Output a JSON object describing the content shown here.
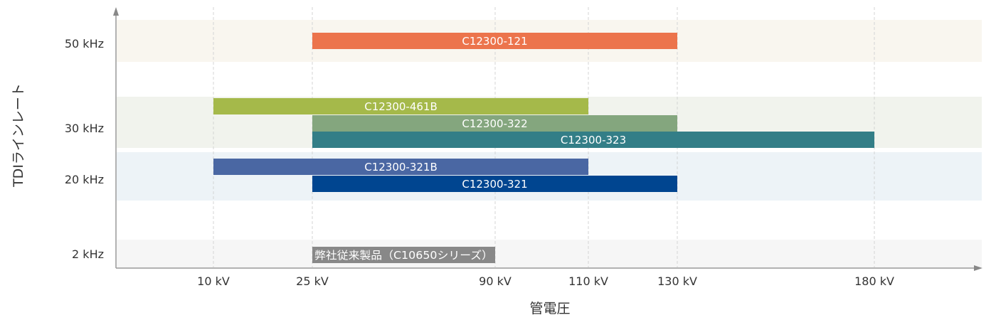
{
  "chart_data": {
    "type": "bar",
    "orientation": "horizontal-range",
    "xlabel": "管電圧",
    "ylabel": "TDIラインレート",
    "x_ticks": [
      {
        "value": 10,
        "label": "10 kV"
      },
      {
        "value": 25,
        "label": "25 kV"
      },
      {
        "value": 90,
        "label": "90 kV"
      },
      {
        "value": 110,
        "label": "110 kV"
      },
      {
        "value": 130,
        "label": "130 kV"
      },
      {
        "value": 180,
        "label": "180 kV"
      }
    ],
    "x_scale": "non-linear (ticks evenly placed by label, not by value)",
    "grid": "vertical dashed lines at x ticks",
    "categories": [
      {
        "label": "50 kHz",
        "band_color": "#f9f6ef"
      },
      {
        "label": "30 kHz",
        "band_color": "#f1f3ed"
      },
      {
        "label": "20 kHz",
        "band_color": "#edf3f7"
      },
      {
        "label": "2 kHz",
        "band_color": "#f6f6f6"
      }
    ],
    "series": [
      {
        "name": "C12300-121",
        "category": "50 kHz",
        "start": 25,
        "end": 130,
        "color": "#ec744c"
      },
      {
        "name": "C12300-461B",
        "category": "30 kHz",
        "start": 10,
        "end": 110,
        "color": "#a5b94a"
      },
      {
        "name": "C12300-322",
        "category": "30 kHz",
        "start": 25,
        "end": 130,
        "color": "#84a67e"
      },
      {
        "name": "C12300-323",
        "category": "30 kHz",
        "start": 25,
        "end": 180,
        "color": "#337e87"
      },
      {
        "name": "C12300-321B",
        "category": "20 kHz",
        "start": 10,
        "end": 110,
        "color": "#4a67a3"
      },
      {
        "name": "C12300-321",
        "category": "20 kHz",
        "start": 25,
        "end": 130,
        "color": "#004590"
      },
      {
        "name": "弊社従来製品（C10650シリーズ）",
        "category": "2 kHz",
        "start": 25,
        "end": 90,
        "color": "#888888"
      }
    ]
  }
}
